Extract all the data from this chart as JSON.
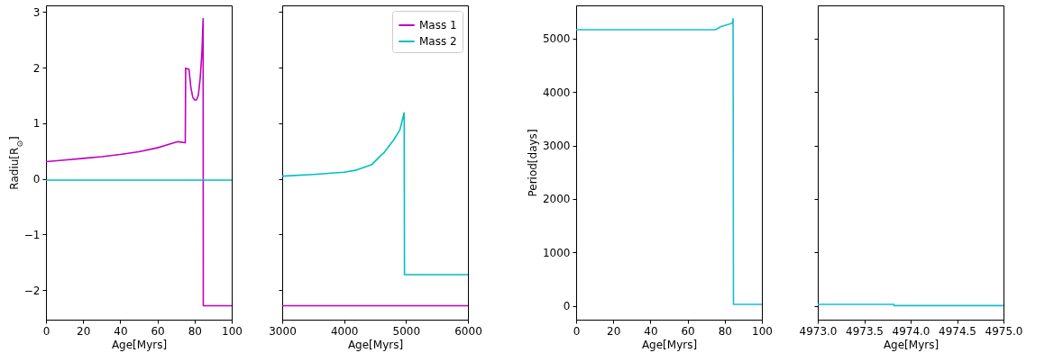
{
  "chart_data": [
    {
      "type": "line",
      "xlabel": "Age[Myrs]",
      "ylabel": "Radiu[R$_{⊙}$]",
      "xlim": [
        0,
        100
      ],
      "ylim": [
        -2.53,
        3.12
      ],
      "xticks": [
        0,
        20,
        40,
        60,
        80,
        100
      ],
      "yticks": [
        {
          "value": -2,
          "label": "−2"
        },
        {
          "value": -1,
          "label": "−1"
        },
        0,
        1,
        2,
        3
      ],
      "grid": false,
      "series": [
        {
          "color": "#bf00bf",
          "x": [
            0,
            10,
            20,
            30,
            40,
            50,
            60,
            65,
            71,
            75,
            75.2,
            77,
            78,
            79,
            80,
            81,
            82,
            83,
            84,
            84.6,
            84.7,
            100
          ],
          "values": [
            0.31,
            0.34,
            0.37,
            0.4,
            0.44,
            0.49,
            0.56,
            0.61,
            0.67,
            0.65,
            1.99,
            1.97,
            1.65,
            1.47,
            1.42,
            1.42,
            1.5,
            1.8,
            2.3,
            2.88,
            -2.28,
            -2.28
          ]
        },
        {
          "color": "#00bfbf",
          "x": [
            0,
            100
          ],
          "values": [
            -0.02,
            -0.02
          ]
        }
      ]
    },
    {
      "type": "line",
      "xlabel": "Age[Myrs]",
      "xlim": [
        3000,
        6000
      ],
      "ylim": [
        -2.53,
        3.12
      ],
      "xticks": [
        3000,
        4000,
        5000,
        6000
      ],
      "yticks": [
        -2,
        -1,
        0,
        1,
        2,
        3
      ],
      "tick_labels": "x",
      "grid": false,
      "legend": "top right",
      "series": [
        {
          "name": "Mass 1",
          "color": "#bf00bf",
          "x": [
            3000,
            6000
          ],
          "values": [
            -2.28,
            -2.28
          ]
        },
        {
          "name": "Mass 2",
          "color": "#00bfbf",
          "x": [
            3000,
            3500,
            4000,
            4200,
            4450,
            4600,
            4650,
            4800,
            4900,
            4970,
            4975,
            6000
          ],
          "values": [
            0.05,
            0.08,
            0.12,
            0.16,
            0.26,
            0.43,
            0.48,
            0.7,
            0.88,
            1.19,
            -1.72,
            -1.72
          ]
        }
      ]
    },
    {
      "type": "line",
      "xlabel": "Age[Myrs]",
      "ylabel": "Period[days]",
      "xlim": [
        0,
        100
      ],
      "ylim": [
        -258,
        5620
      ],
      "xticks": [
        0,
        20,
        40,
        60,
        80,
        100
      ],
      "yticks": [
        0,
        1000,
        2000,
        3000,
        4000,
        5000
      ],
      "grid": false,
      "series": [
        {
          "color": "#17becf",
          "x": [
            0,
            75,
            78,
            84,
            84.5,
            84.7,
            100
          ],
          "values": [
            5165,
            5165,
            5225,
            5286,
            5370,
            28,
            28
          ]
        }
      ]
    },
    {
      "type": "line",
      "xlabel": "Age[Myrs]",
      "xlim": [
        4973,
        4975
      ],
      "ylim": [
        -258,
        5620
      ],
      "xticks": [
        {
          "value": 4973,
          "label": "4973.0"
        },
        {
          "value": 4973.5,
          "label": "4973.5"
        },
        {
          "value": 4974,
          "label": "4974.0"
        },
        {
          "value": 4974.5,
          "label": "4974.5"
        },
        {
          "value": 4975,
          "label": "4975.0"
        }
      ],
      "yticks": [
        0,
        1000,
        2000,
        3000,
        4000,
        5000
      ],
      "tick_labels": "x",
      "grid": false,
      "series": [
        {
          "color": "#17becf",
          "x": [
            4973,
            4973.82,
            4973.82,
            4975
          ],
          "values": [
            28,
            28,
            5,
            5
          ]
        }
      ]
    }
  ]
}
